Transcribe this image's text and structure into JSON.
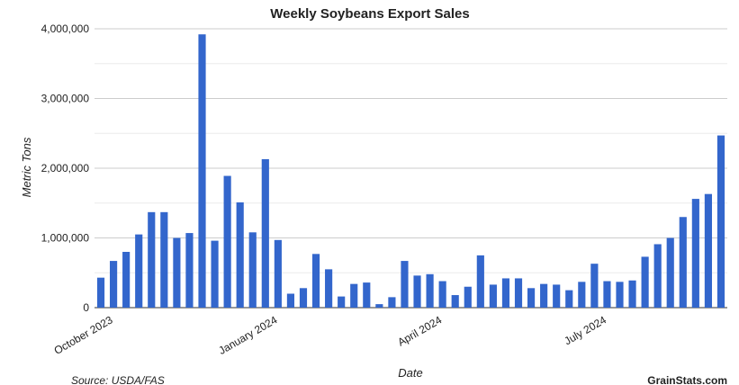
{
  "chart_data": {
    "type": "bar",
    "title": "Weekly Soybeans Export Sales",
    "xlabel": "Date",
    "ylabel": "Metric Tons",
    "source": "Source: USDA/FAS",
    "brand": "GrainStats.com",
    "color": "#3366cc",
    "grid": true,
    "ylim": [
      0,
      4000000
    ],
    "yticks": [
      0,
      1000000,
      2000000,
      3000000,
      4000000
    ],
    "ytick_labels": [
      "0",
      "1,000,000",
      "2,000,000",
      "3,000,000",
      "4,000,000"
    ],
    "xtick_labels": [
      {
        "label": "October 2023",
        "index": 1
      },
      {
        "label": "January 2024",
        "index": 14
      },
      {
        "label": "April 2024",
        "index": 27
      },
      {
        "label": "July 2024",
        "index": 40
      }
    ],
    "values": [
      430000,
      670000,
      800000,
      1050000,
      1370000,
      1370000,
      1000000,
      1070000,
      3920000,
      960000,
      1890000,
      1510000,
      1080000,
      2130000,
      970000,
      200000,
      280000,
      770000,
      550000,
      160000,
      340000,
      360000,
      50000,
      150000,
      670000,
      460000,
      480000,
      380000,
      180000,
      300000,
      750000,
      330000,
      420000,
      420000,
      280000,
      340000,
      330000,
      250000,
      370000,
      630000,
      380000,
      370000,
      390000,
      730000,
      910000,
      1000000,
      1300000,
      1560000,
      1630000,
      2470000
    ]
  }
}
